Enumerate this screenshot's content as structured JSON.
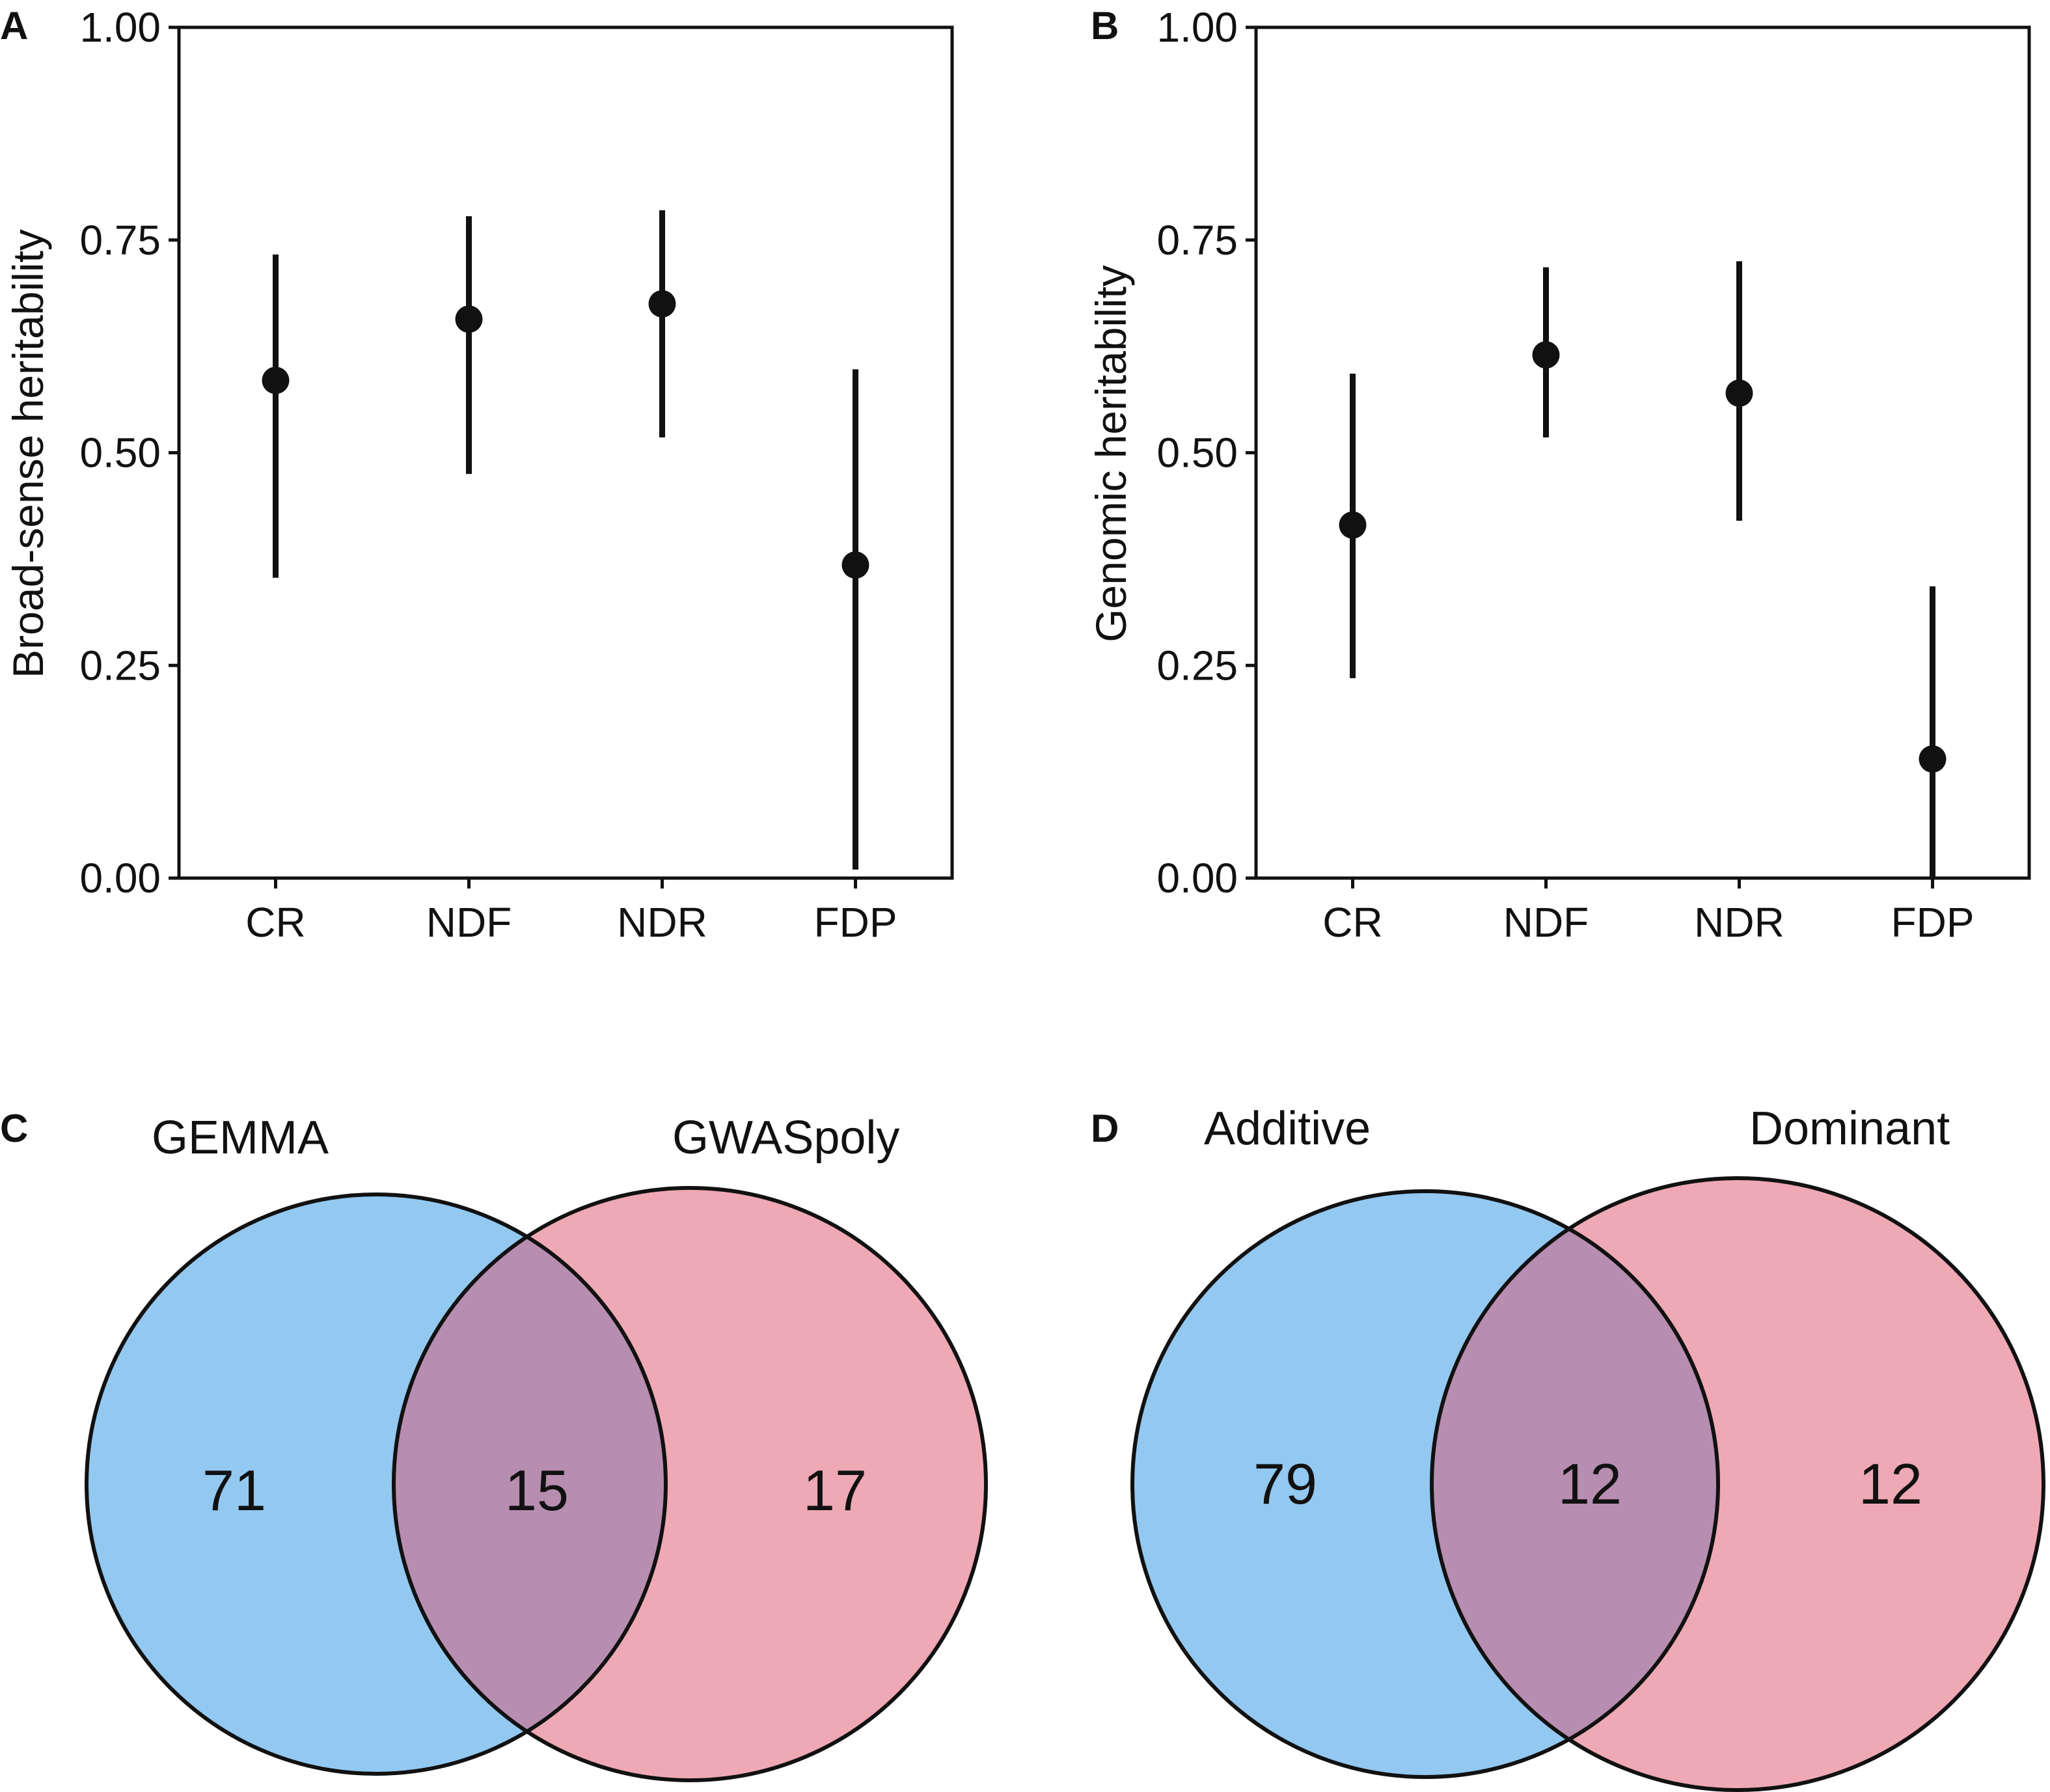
{
  "chart_data": [
    {
      "panel": "A",
      "type": "scatter",
      "subtype": "point-with-interval",
      "title": "",
      "xlabel": "",
      "ylabel": "Broad-sense heritability",
      "ylim": [
        0,
        1
      ],
      "yticks": [
        "0.00",
        "0.25",
        "0.50",
        "0.75",
        "1.00"
      ],
      "categories": [
        "CR",
        "NDF",
        "NDR",
        "FDP"
      ],
      "values": [
        0.585,
        0.657,
        0.675,
        0.368
      ],
      "lower": [
        0.353,
        0.475,
        0.518,
        0.01
      ],
      "upper": [
        0.733,
        0.778,
        0.785,
        0.598
      ],
      "grid": false
    },
    {
      "panel": "B",
      "type": "scatter",
      "subtype": "point-with-interval",
      "title": "",
      "xlabel": "",
      "ylabel": "Genomic heritability",
      "ylim": [
        0,
        1
      ],
      "yticks": [
        "0.00",
        "0.25",
        "0.50",
        "0.75",
        "1.00"
      ],
      "categories": [
        "CR",
        "NDF",
        "NDR",
        "FDP"
      ],
      "values": [
        0.415,
        0.615,
        0.57,
        0.14
      ],
      "lower": [
        0.235,
        0.518,
        0.42,
        0.0
      ],
      "upper": [
        0.593,
        0.718,
        0.725,
        0.343
      ],
      "grid": false
    },
    {
      "panel": "C",
      "type": "venn",
      "sets": [
        "GEMMA",
        "GWASpoly"
      ],
      "only_left": "71",
      "intersection": "15",
      "only_right": "17"
    },
    {
      "panel": "D",
      "type": "venn",
      "sets": [
        "Additive",
        "Dominant"
      ],
      "only_left": "79",
      "intersection": "12",
      "only_right": "12"
    }
  ],
  "colors": {
    "left_set": "#93c8f0",
    "right_set": "#eea9b4",
    "overlap": "#b78db0",
    "ink": "#111111"
  }
}
